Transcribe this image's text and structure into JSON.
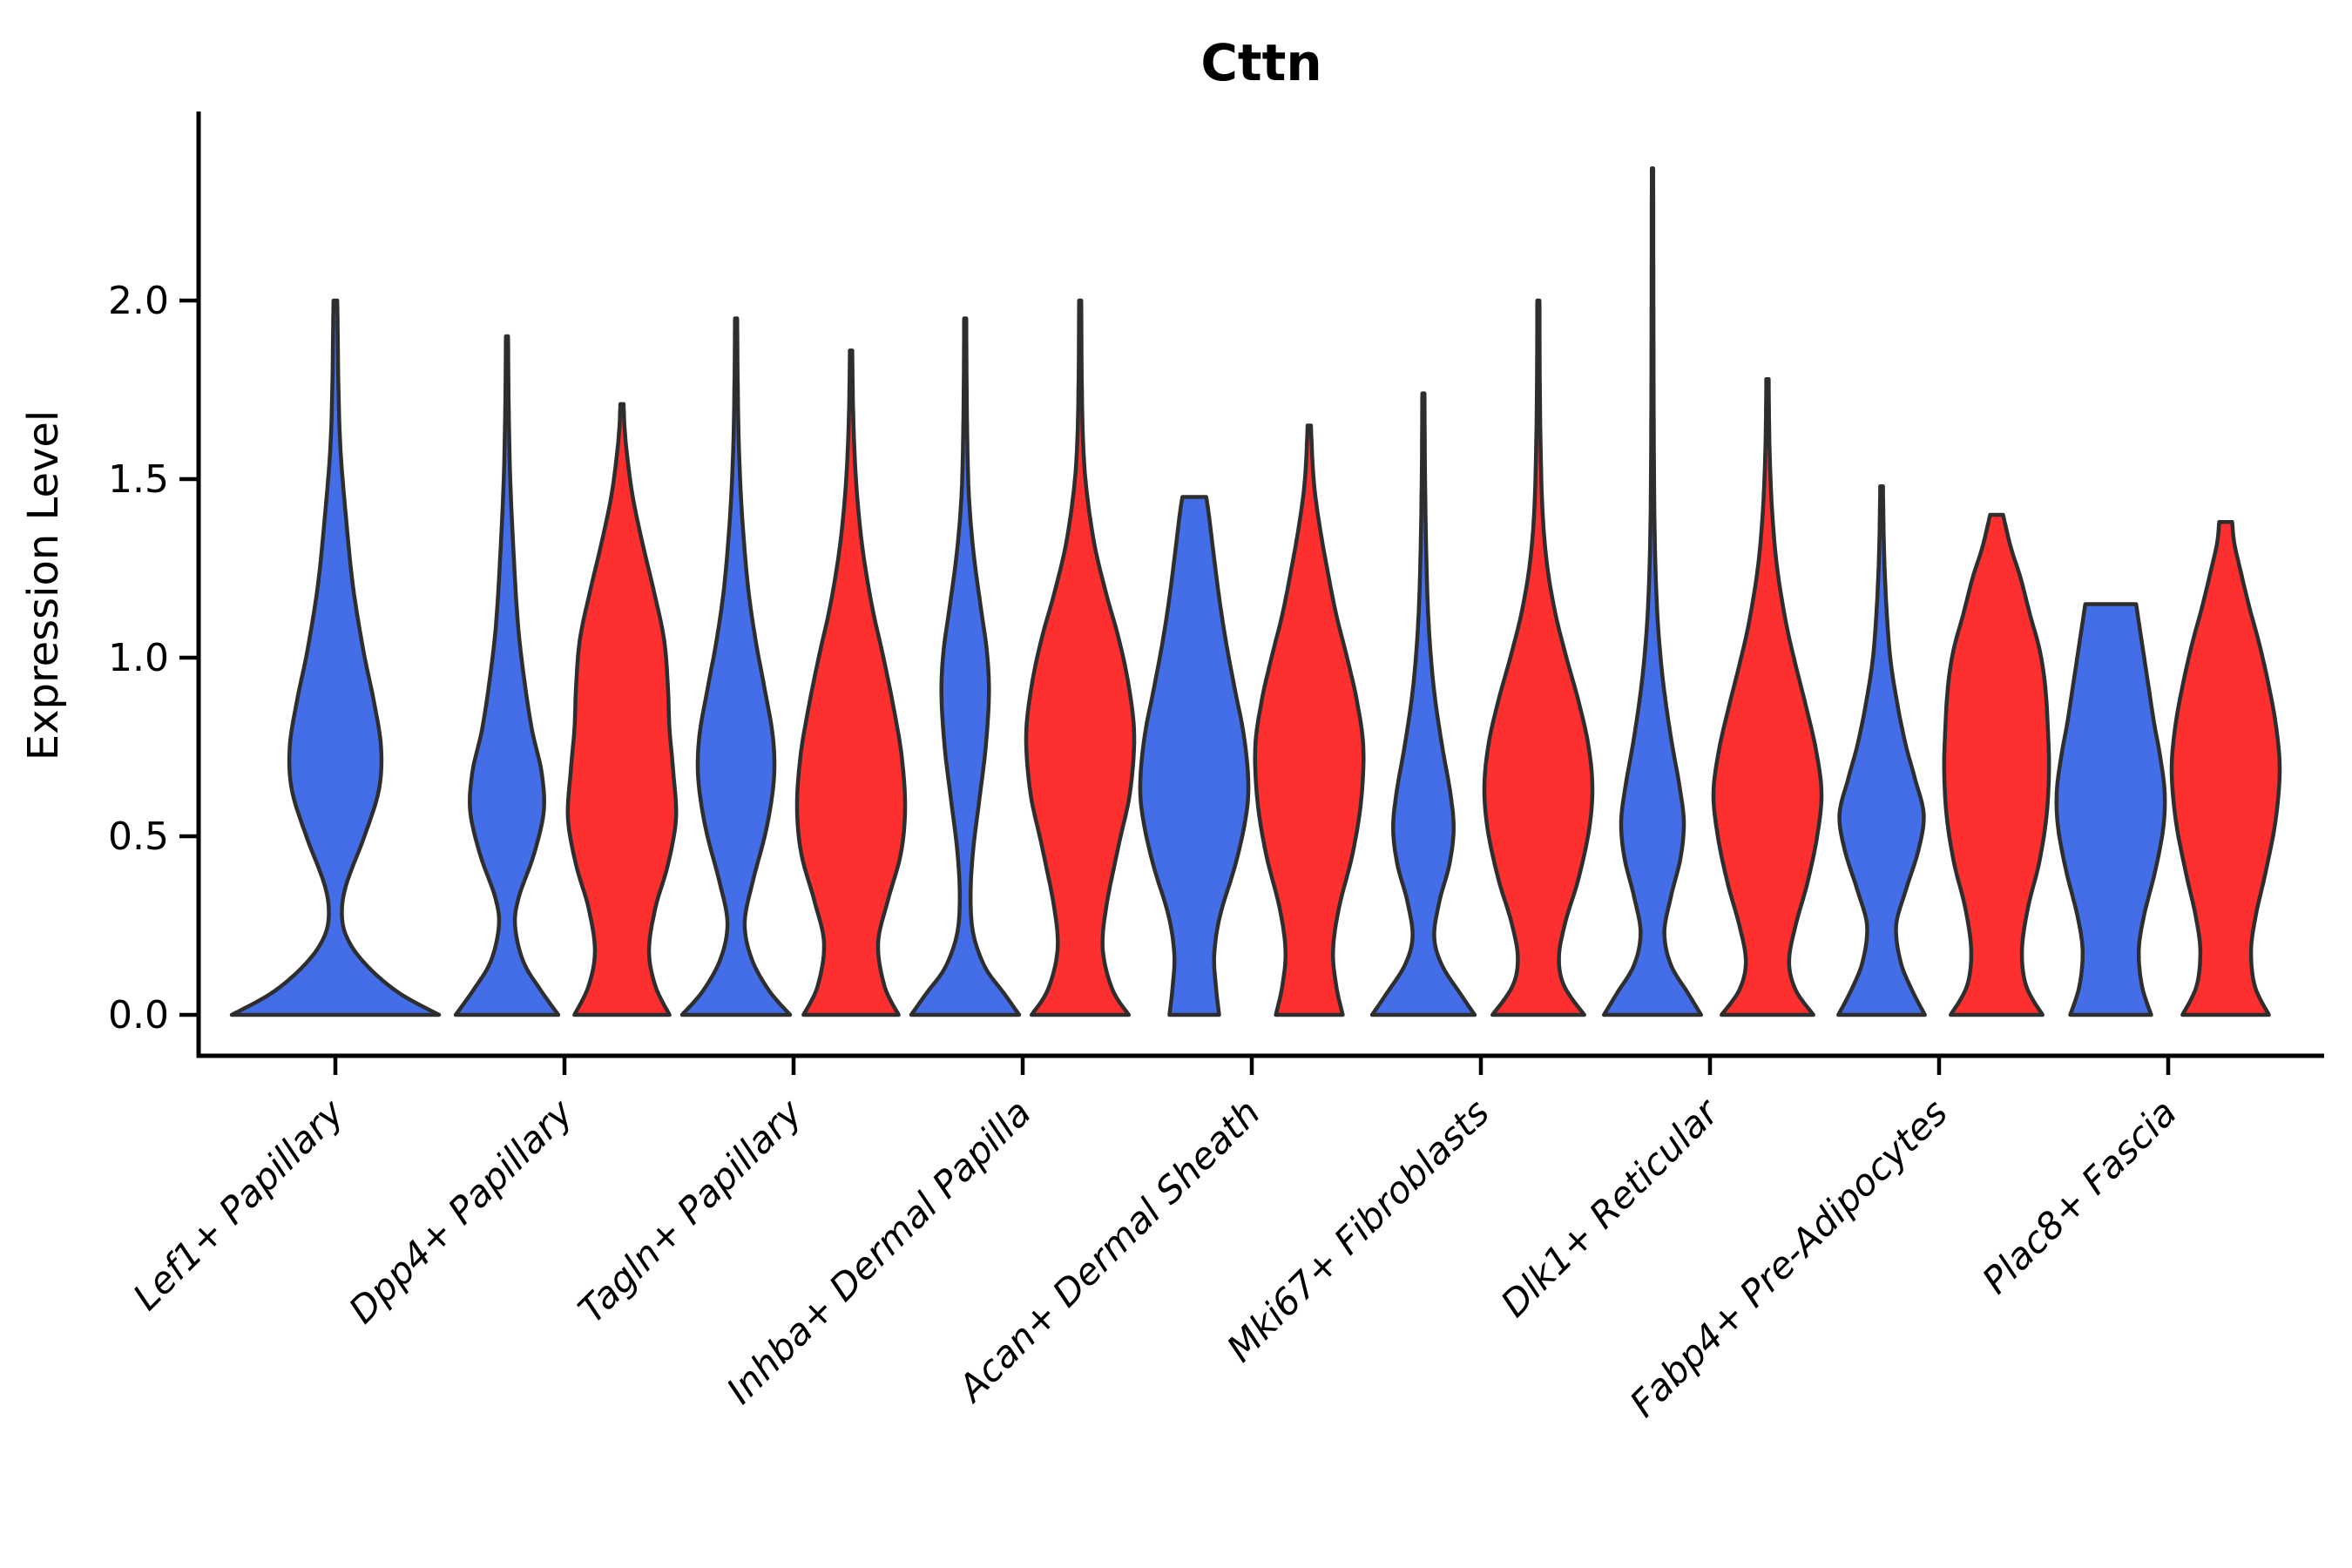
{
  "title": "Cttn",
  "axes": {
    "ylabel": "Expression Level"
  },
  "chart_data": {
    "type": "violin",
    "title": "Cttn",
    "xlabel": "",
    "ylabel": "Expression Level",
    "ylim": [
      -0.12,
      2.52
    ],
    "grid": false,
    "legend": "none",
    "yticks": [
      {
        "label": "0.0",
        "value": 0.0
      },
      {
        "label": "0.5",
        "value": 0.5
      },
      {
        "label": "1.0",
        "value": 1.0
      },
      {
        "label": "1.5",
        "value": 1.5
      },
      {
        "label": "2.0",
        "value": 2.0
      }
    ],
    "categories": [
      "Lef1+ Papillary",
      "Dpp4+ Papillary",
      "Tagln+ Papillary",
      "Inhba+ Dermal Papilla",
      "Acan+ Dermal Sheath",
      "Mki67+ Fibroblasts",
      "Dlk1+ Reticular",
      "Fabp4+ Pre-Adipocytes",
      "Plac8+ Fascia"
    ],
    "colors": {
      "blue_fill": "#446ee8",
      "red_fill": "#fd2f2f",
      "outline": "#2e2e2e",
      "axis": "#000000"
    },
    "violins": [
      {
        "category": 0,
        "group": "blue",
        "single": true,
        "peak": 2.0,
        "flat_top": false,
        "profile": [
          [
            0,
            1.0
          ],
          [
            0.06,
            0.62
          ],
          [
            0.13,
            0.33
          ],
          [
            0.2,
            0.14
          ],
          [
            0.27,
            0.065
          ],
          [
            0.36,
            0.1
          ],
          [
            0.5,
            0.28
          ],
          [
            0.63,
            0.42
          ],
          [
            0.75,
            0.44
          ],
          [
            0.88,
            0.37
          ],
          [
            1.02,
            0.27
          ],
          [
            1.2,
            0.17
          ],
          [
            1.4,
            0.1
          ],
          [
            1.58,
            0.05
          ],
          [
            1.75,
            0.03
          ],
          [
            1.92,
            0.022
          ],
          [
            2.0,
            0.018
          ]
        ]
      },
      {
        "category": 1,
        "group": "blue",
        "single": false,
        "peak": 1.9,
        "flat_top": false,
        "profile": [
          [
            0,
            0.95
          ],
          [
            0.07,
            0.62
          ],
          [
            0.15,
            0.3
          ],
          [
            0.25,
            0.15
          ],
          [
            0.33,
            0.22
          ],
          [
            0.45,
            0.5
          ],
          [
            0.57,
            0.68
          ],
          [
            0.68,
            0.64
          ],
          [
            0.8,
            0.46
          ],
          [
            0.95,
            0.31
          ],
          [
            1.1,
            0.2
          ],
          [
            1.3,
            0.12
          ],
          [
            1.5,
            0.06
          ],
          [
            1.7,
            0.032
          ],
          [
            1.9,
            0.02
          ]
        ]
      },
      {
        "category": 1,
        "group": "red",
        "single": false,
        "peak": 1.71,
        "flat_top": false,
        "profile": [
          [
            0,
            0.88
          ],
          [
            0.08,
            0.62
          ],
          [
            0.18,
            0.5
          ],
          [
            0.3,
            0.62
          ],
          [
            0.42,
            0.85
          ],
          [
            0.55,
            1.0
          ],
          [
            0.68,
            0.95
          ],
          [
            0.8,
            0.88
          ],
          [
            0.92,
            0.85
          ],
          [
            1.05,
            0.78
          ],
          [
            1.18,
            0.6
          ],
          [
            1.32,
            0.38
          ],
          [
            1.45,
            0.2
          ],
          [
            1.56,
            0.1
          ],
          [
            1.64,
            0.05
          ],
          [
            1.71,
            0.03
          ]
        ]
      },
      {
        "category": 2,
        "group": "blue",
        "single": false,
        "peak": 1.95,
        "flat_top": false,
        "profile": [
          [
            0,
            1.0
          ],
          [
            0.07,
            0.6
          ],
          [
            0.16,
            0.28
          ],
          [
            0.26,
            0.16
          ],
          [
            0.38,
            0.32
          ],
          [
            0.52,
            0.56
          ],
          [
            0.66,
            0.7
          ],
          [
            0.78,
            0.68
          ],
          [
            0.92,
            0.52
          ],
          [
            1.05,
            0.36
          ],
          [
            1.2,
            0.22
          ],
          [
            1.4,
            0.11
          ],
          [
            1.6,
            0.05
          ],
          [
            1.8,
            0.028
          ],
          [
            1.95,
            0.02
          ]
        ]
      },
      {
        "category": 2,
        "group": "red",
        "single": false,
        "peak": 1.86,
        "flat_top": false,
        "profile": [
          [
            0,
            0.88
          ],
          [
            0.08,
            0.62
          ],
          [
            0.2,
            0.5
          ],
          [
            0.32,
            0.68
          ],
          [
            0.45,
            0.92
          ],
          [
            0.58,
            1.0
          ],
          [
            0.72,
            0.94
          ],
          [
            0.85,
            0.8
          ],
          [
            1.0,
            0.6
          ],
          [
            1.15,
            0.38
          ],
          [
            1.32,
            0.2
          ],
          [
            1.5,
            0.09
          ],
          [
            1.68,
            0.04
          ],
          [
            1.86,
            0.022
          ]
        ]
      },
      {
        "category": 3,
        "group": "blue",
        "single": false,
        "peak": 1.95,
        "flat_top": false,
        "profile": [
          [
            0,
            1.0
          ],
          [
            0.06,
            0.72
          ],
          [
            0.13,
            0.38
          ],
          [
            0.22,
            0.16
          ],
          [
            0.32,
            0.1
          ],
          [
            0.45,
            0.14
          ],
          [
            0.6,
            0.26
          ],
          [
            0.75,
            0.38
          ],
          [
            0.9,
            0.44
          ],
          [
            1.02,
            0.4
          ],
          [
            1.15,
            0.28
          ],
          [
            1.3,
            0.15
          ],
          [
            1.45,
            0.07
          ],
          [
            1.6,
            0.04
          ],
          [
            1.8,
            0.025
          ],
          [
            1.95,
            0.02
          ]
        ]
      },
      {
        "category": 3,
        "group": "red",
        "single": false,
        "peak": 2.0,
        "flat_top": false,
        "profile": [
          [
            0,
            0.9
          ],
          [
            0.07,
            0.6
          ],
          [
            0.18,
            0.42
          ],
          [
            0.3,
            0.48
          ],
          [
            0.48,
            0.72
          ],
          [
            0.62,
            0.92
          ],
          [
            0.78,
            1.0
          ],
          [
            0.92,
            0.9
          ],
          [
            1.05,
            0.72
          ],
          [
            1.18,
            0.48
          ],
          [
            1.32,
            0.26
          ],
          [
            1.48,
            0.11
          ],
          [
            1.62,
            0.05
          ],
          [
            1.8,
            0.028
          ],
          [
            2.0,
            0.02
          ]
        ]
      },
      {
        "category": 4,
        "group": "blue",
        "single": false,
        "peak": 1.45,
        "flat_top": true,
        "profile": [
          [
            0,
            0.46
          ],
          [
            0.08,
            0.4
          ],
          [
            0.17,
            0.37
          ],
          [
            0.28,
            0.48
          ],
          [
            0.42,
            0.76
          ],
          [
            0.55,
            0.95
          ],
          [
            0.65,
            1.0
          ],
          [
            0.78,
            0.92
          ],
          [
            0.92,
            0.74
          ],
          [
            1.05,
            0.58
          ],
          [
            1.18,
            0.45
          ],
          [
            1.3,
            0.35
          ],
          [
            1.4,
            0.27
          ],
          [
            1.45,
            0.22
          ]
        ]
      },
      {
        "category": 4,
        "group": "red",
        "single": false,
        "peak": 1.65,
        "flat_top": false,
        "profile": [
          [
            0,
            0.62
          ],
          [
            0.08,
            0.5
          ],
          [
            0.18,
            0.44
          ],
          [
            0.3,
            0.55
          ],
          [
            0.45,
            0.8
          ],
          [
            0.6,
            0.96
          ],
          [
            0.75,
            1.0
          ],
          [
            0.88,
            0.88
          ],
          [
            1.0,
            0.7
          ],
          [
            1.12,
            0.5
          ],
          [
            1.25,
            0.33
          ],
          [
            1.38,
            0.18
          ],
          [
            1.5,
            0.08
          ],
          [
            1.65,
            0.03
          ]
        ]
      },
      {
        "category": 5,
        "group": "blue",
        "single": false,
        "peak": 1.74,
        "flat_top": false,
        "profile": [
          [
            0,
            0.95
          ],
          [
            0.06,
            0.68
          ],
          [
            0.14,
            0.34
          ],
          [
            0.22,
            0.2
          ],
          [
            0.32,
            0.3
          ],
          [
            0.42,
            0.48
          ],
          [
            0.52,
            0.56
          ],
          [
            0.62,
            0.5
          ],
          [
            0.75,
            0.35
          ],
          [
            0.88,
            0.22
          ],
          [
            1.0,
            0.14
          ],
          [
            1.15,
            0.08
          ],
          [
            1.35,
            0.045
          ],
          [
            1.55,
            0.028
          ],
          [
            1.74,
            0.02
          ]
        ]
      },
      {
        "category": 5,
        "group": "red",
        "single": false,
        "peak": 2.0,
        "flat_top": false,
        "profile": [
          [
            0,
            0.85
          ],
          [
            0.08,
            0.48
          ],
          [
            0.16,
            0.38
          ],
          [
            0.26,
            0.5
          ],
          [
            0.38,
            0.74
          ],
          [
            0.52,
            0.94
          ],
          [
            0.64,
            1.0
          ],
          [
            0.76,
            0.92
          ],
          [
            0.88,
            0.74
          ],
          [
            1.0,
            0.52
          ],
          [
            1.12,
            0.32
          ],
          [
            1.25,
            0.17
          ],
          [
            1.4,
            0.08
          ],
          [
            1.6,
            0.04
          ],
          [
            1.8,
            0.025
          ],
          [
            2.0,
            0.02
          ]
        ]
      },
      {
        "category": 6,
        "group": "blue",
        "single": false,
        "peak": 2.37,
        "flat_top": false,
        "profile": [
          [
            0,
            0.9
          ],
          [
            0.06,
            0.66
          ],
          [
            0.14,
            0.34
          ],
          [
            0.23,
            0.22
          ],
          [
            0.33,
            0.34
          ],
          [
            0.44,
            0.52
          ],
          [
            0.54,
            0.58
          ],
          [
            0.64,
            0.5
          ],
          [
            0.76,
            0.36
          ],
          [
            0.88,
            0.24
          ],
          [
            1.0,
            0.15
          ],
          [
            1.15,
            0.08
          ],
          [
            1.35,
            0.04
          ],
          [
            1.6,
            0.025
          ],
          [
            1.9,
            0.018
          ],
          [
            2.15,
            0.015
          ],
          [
            2.37,
            0.013
          ]
        ]
      },
      {
        "category": 6,
        "group": "red",
        "single": false,
        "peak": 1.78,
        "flat_top": false,
        "profile": [
          [
            0,
            0.85
          ],
          [
            0.07,
            0.52
          ],
          [
            0.15,
            0.4
          ],
          [
            0.25,
            0.52
          ],
          [
            0.37,
            0.74
          ],
          [
            0.5,
            0.92
          ],
          [
            0.62,
            1.0
          ],
          [
            0.74,
            0.9
          ],
          [
            0.86,
            0.72
          ],
          [
            0.98,
            0.52
          ],
          [
            1.1,
            0.34
          ],
          [
            1.25,
            0.18
          ],
          [
            1.4,
            0.09
          ],
          [
            1.55,
            0.045
          ],
          [
            1.68,
            0.028
          ],
          [
            1.78,
            0.022
          ]
        ]
      },
      {
        "category": 7,
        "group": "blue",
        "single": false,
        "peak": 1.48,
        "flat_top": false,
        "profile": [
          [
            0,
            0.8
          ],
          [
            0.07,
            0.56
          ],
          [
            0.15,
            0.35
          ],
          [
            0.25,
            0.27
          ],
          [
            0.35,
            0.45
          ],
          [
            0.46,
            0.68
          ],
          [
            0.56,
            0.78
          ],
          [
            0.66,
            0.62
          ],
          [
            0.76,
            0.44
          ],
          [
            0.88,
            0.28
          ],
          [
            1.0,
            0.16
          ],
          [
            1.14,
            0.09
          ],
          [
            1.3,
            0.045
          ],
          [
            1.48,
            0.025
          ]
        ]
      },
      {
        "category": 7,
        "group": "red",
        "single": false,
        "peak": 1.4,
        "flat_top": true,
        "profile": [
          [
            0,
            0.85
          ],
          [
            0.08,
            0.55
          ],
          [
            0.18,
            0.47
          ],
          [
            0.3,
            0.58
          ],
          [
            0.42,
            0.78
          ],
          [
            0.55,
            0.92
          ],
          [
            0.68,
            0.97
          ],
          [
            0.8,
            0.95
          ],
          [
            0.92,
            0.9
          ],
          [
            1.02,
            0.8
          ],
          [
            1.12,
            0.62
          ],
          [
            1.22,
            0.45
          ],
          [
            1.3,
            0.28
          ],
          [
            1.36,
            0.18
          ],
          [
            1.4,
            0.12
          ]
        ]
      },
      {
        "category": 8,
        "group": "blue",
        "single": false,
        "peak": 1.15,
        "flat_top": true,
        "profile": [
          [
            0,
            0.75
          ],
          [
            0.08,
            0.58
          ],
          [
            0.18,
            0.52
          ],
          [
            0.28,
            0.62
          ],
          [
            0.4,
            0.82
          ],
          [
            0.52,
            0.97
          ],
          [
            0.62,
            1.0
          ],
          [
            0.72,
            0.92
          ],
          [
            0.82,
            0.8
          ],
          [
            0.92,
            0.7
          ],
          [
            1.02,
            0.6
          ],
          [
            1.1,
            0.52
          ],
          [
            1.15,
            0.47
          ]
        ]
      },
      {
        "category": 8,
        "group": "red",
        "single": false,
        "peak": 1.38,
        "flat_top": true,
        "profile": [
          [
            0,
            0.8
          ],
          [
            0.08,
            0.54
          ],
          [
            0.18,
            0.47
          ],
          [
            0.28,
            0.56
          ],
          [
            0.4,
            0.74
          ],
          [
            0.54,
            0.92
          ],
          [
            0.68,
            1.0
          ],
          [
            0.8,
            0.94
          ],
          [
            0.92,
            0.8
          ],
          [
            1.04,
            0.62
          ],
          [
            1.14,
            0.44
          ],
          [
            1.24,
            0.28
          ],
          [
            1.32,
            0.16
          ],
          [
            1.38,
            0.12
          ]
        ]
      }
    ]
  }
}
